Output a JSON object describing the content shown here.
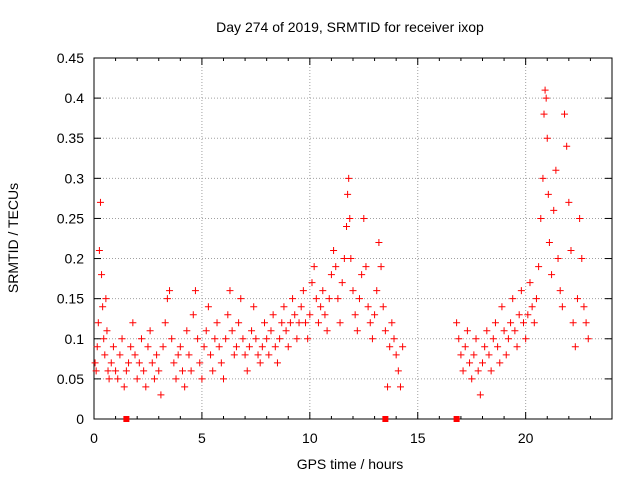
{
  "chart_data": {
    "type": "scatter",
    "title": "Day 274 of 2019, SRMTID for receiver ixop",
    "xlabel": "GPS time / hours",
    "ylabel": "SRMTID / TECUs",
    "xlim": [
      0,
      24
    ],
    "ylim": [
      0,
      0.45
    ],
    "x_ticks": [
      0,
      5,
      10,
      15,
      20
    ],
    "y_ticks": [
      0,
      0.05,
      0.1,
      0.15,
      0.2,
      0.25,
      0.3,
      0.35,
      0.4,
      0.45
    ],
    "x_tick_labels": [
      "0",
      "5",
      "10",
      "15",
      "20"
    ],
    "y_tick_labels": [
      "0",
      "0.05",
      "0.1",
      "0.15",
      "0.2",
      "0.25",
      "0.3",
      "0.35",
      "0.4",
      "0.45"
    ],
    "grid": true,
    "marker": "+",
    "series": [
      {
        "name": "SRMTID",
        "color": "#ff0000",
        "points": [
          [
            0.05,
            0.07
          ],
          [
            0.1,
            0.06
          ],
          [
            0.15,
            0.09
          ],
          [
            0.2,
            0.12
          ],
          [
            0.25,
            0.21
          ],
          [
            0.3,
            0.27
          ],
          [
            0.35,
            0.18
          ],
          [
            0.4,
            0.14
          ],
          [
            0.45,
            0.1
          ],
          [
            0.5,
            0.08
          ],
          [
            0.55,
            0.15
          ],
          [
            0.6,
            0.11
          ],
          [
            0.65,
            0.06
          ],
          [
            0.7,
            0.05
          ],
          [
            0.8,
            0.07
          ],
          [
            0.9,
            0.09
          ],
          [
            1.0,
            0.06
          ],
          [
            1.1,
            0.05
          ],
          [
            1.2,
            0.08
          ],
          [
            1.3,
            0.1
          ],
          [
            1.4,
            0.04
          ],
          [
            1.5,
            0.06
          ],
          [
            1.6,
            0.07
          ],
          [
            1.7,
            0.09
          ],
          [
            1.8,
            0.12
          ],
          [
            1.9,
            0.08
          ],
          [
            2.0,
            0.05
          ],
          [
            2.1,
            0.07
          ],
          [
            2.2,
            0.1
          ],
          [
            2.3,
            0.06
          ],
          [
            2.4,
            0.04
          ],
          [
            2.5,
            0.09
          ],
          [
            2.6,
            0.11
          ],
          [
            2.7,
            0.07
          ],
          [
            2.8,
            0.05
          ],
          [
            2.9,
            0.08
          ],
          [
            3.0,
            0.06
          ],
          [
            3.1,
            0.03
          ],
          [
            3.2,
            0.09
          ],
          [
            3.3,
            0.12
          ],
          [
            3.4,
            0.15
          ],
          [
            3.5,
            0.16
          ],
          [
            3.6,
            0.1
          ],
          [
            3.7,
            0.07
          ],
          [
            3.8,
            0.05
          ],
          [
            3.9,
            0.08
          ],
          [
            4.0,
            0.09
          ],
          [
            4.1,
            0.06
          ],
          [
            4.2,
            0.04
          ],
          [
            4.3,
            0.11
          ],
          [
            4.4,
            0.08
          ],
          [
            4.5,
            0.06
          ],
          [
            4.6,
            0.13
          ],
          [
            4.7,
            0.16
          ],
          [
            4.8,
            0.1
          ],
          [
            4.9,
            0.07
          ],
          [
            5.0,
            0.05
          ],
          [
            5.1,
            0.09
          ],
          [
            5.2,
            0.11
          ],
          [
            5.3,
            0.14
          ],
          [
            5.4,
            0.08
          ],
          [
            5.5,
            0.06
          ],
          [
            5.6,
            0.1
          ],
          [
            5.7,
            0.12
          ],
          [
            5.8,
            0.09
          ],
          [
            5.9,
            0.07
          ],
          [
            6.0,
            0.05
          ],
          [
            6.1,
            0.1
          ],
          [
            6.2,
            0.13
          ],
          [
            6.3,
            0.16
          ],
          [
            6.4,
            0.11
          ],
          [
            6.5,
            0.08
          ],
          [
            6.6,
            0.09
          ],
          [
            6.7,
            0.12
          ],
          [
            6.8,
            0.15
          ],
          [
            6.9,
            0.1
          ],
          [
            7.0,
            0.08
          ],
          [
            7.1,
            0.06
          ],
          [
            7.2,
            0.09
          ],
          [
            7.3,
            0.11
          ],
          [
            7.4,
            0.14
          ],
          [
            7.5,
            0.1
          ],
          [
            7.6,
            0.08
          ],
          [
            7.7,
            0.07
          ],
          [
            7.8,
            0.09
          ],
          [
            7.9,
            0.12
          ],
          [
            8.0,
            0.1
          ],
          [
            8.1,
            0.08
          ],
          [
            8.2,
            0.11
          ],
          [
            8.3,
            0.13
          ],
          [
            8.4,
            0.09
          ],
          [
            8.5,
            0.07
          ],
          [
            8.6,
            0.1
          ],
          [
            8.7,
            0.12
          ],
          [
            8.8,
            0.14
          ],
          [
            8.9,
            0.11
          ],
          [
            9.0,
            0.09
          ],
          [
            9.1,
            0.12
          ],
          [
            9.2,
            0.15
          ],
          [
            9.3,
            0.13
          ],
          [
            9.4,
            0.1
          ],
          [
            9.5,
            0.12
          ],
          [
            9.6,
            0.14
          ],
          [
            9.7,
            0.16
          ],
          [
            9.8,
            0.12
          ],
          [
            9.9,
            0.1
          ],
          [
            10.0,
            0.13
          ],
          [
            10.1,
            0.17
          ],
          [
            10.2,
            0.19
          ],
          [
            10.3,
            0.15
          ],
          [
            10.4,
            0.12
          ],
          [
            10.5,
            0.14
          ],
          [
            10.6,
            0.16
          ],
          [
            10.7,
            0.13
          ],
          [
            10.8,
            0.11
          ],
          [
            10.9,
            0.15
          ],
          [
            11.0,
            0.18
          ],
          [
            11.1,
            0.21
          ],
          [
            11.2,
            0.19
          ],
          [
            11.3,
            0.15
          ],
          [
            11.4,
            0.12
          ],
          [
            11.5,
            0.17
          ],
          [
            11.6,
            0.2
          ],
          [
            11.7,
            0.24
          ],
          [
            11.75,
            0.28
          ],
          [
            11.8,
            0.3
          ],
          [
            11.85,
            0.25
          ],
          [
            11.9,
            0.2
          ],
          [
            12.0,
            0.16
          ],
          [
            12.1,
            0.13
          ],
          [
            12.2,
            0.11
          ],
          [
            12.3,
            0.15
          ],
          [
            12.4,
            0.18
          ],
          [
            12.5,
            0.25
          ],
          [
            12.6,
            0.19
          ],
          [
            12.7,
            0.14
          ],
          [
            12.8,
            0.12
          ],
          [
            12.9,
            0.1
          ],
          [
            13.0,
            0.13
          ],
          [
            13.1,
            0.16
          ],
          [
            13.2,
            0.22
          ],
          [
            13.3,
            0.19
          ],
          [
            13.4,
            0.14
          ],
          [
            13.5,
            0.11
          ],
          [
            13.6,
            0.04
          ],
          [
            13.7,
            0.09
          ],
          [
            13.8,
            0.12
          ],
          [
            13.9,
            0.1
          ],
          [
            14.0,
            0.08
          ],
          [
            14.1,
            0.06
          ],
          [
            14.2,
            0.04
          ],
          [
            14.3,
            0.09
          ],
          [
            16.8,
            0.12
          ],
          [
            16.9,
            0.1
          ],
          [
            17.0,
            0.08
          ],
          [
            17.1,
            0.06
          ],
          [
            17.2,
            0.09
          ],
          [
            17.3,
            0.11
          ],
          [
            17.4,
            0.07
          ],
          [
            17.5,
            0.05
          ],
          [
            17.6,
            0.08
          ],
          [
            17.7,
            0.1
          ],
          [
            17.8,
            0.06
          ],
          [
            17.9,
            0.03
          ],
          [
            18.0,
            0.07
          ],
          [
            18.1,
            0.09
          ],
          [
            18.2,
            0.11
          ],
          [
            18.3,
            0.08
          ],
          [
            18.4,
            0.06
          ],
          [
            18.5,
            0.1
          ],
          [
            18.6,
            0.12
          ],
          [
            18.7,
            0.09
          ],
          [
            18.8,
            0.07
          ],
          [
            18.9,
            0.14
          ],
          [
            19.0,
            0.11
          ],
          [
            19.1,
            0.08
          ],
          [
            19.2,
            0.1
          ],
          [
            19.3,
            0.12
          ],
          [
            19.4,
            0.15
          ],
          [
            19.5,
            0.11
          ],
          [
            19.6,
            0.09
          ],
          [
            19.7,
            0.13
          ],
          [
            19.8,
            0.16
          ],
          [
            19.9,
            0.12
          ],
          [
            20.0,
            0.1
          ],
          [
            20.1,
            0.13
          ],
          [
            20.2,
            0.17
          ],
          [
            20.3,
            0.14
          ],
          [
            20.4,
            0.12
          ],
          [
            20.5,
            0.15
          ],
          [
            20.6,
            0.19
          ],
          [
            20.7,
            0.25
          ],
          [
            20.8,
            0.3
          ],
          [
            20.85,
            0.38
          ],
          [
            20.9,
            0.41
          ],
          [
            20.95,
            0.4
          ],
          [
            21.0,
            0.35
          ],
          [
            21.05,
            0.28
          ],
          [
            21.1,
            0.22
          ],
          [
            21.2,
            0.18
          ],
          [
            21.3,
            0.26
          ],
          [
            21.4,
            0.31
          ],
          [
            21.5,
            0.2
          ],
          [
            21.6,
            0.16
          ],
          [
            21.7,
            0.14
          ],
          [
            21.8,
            0.38
          ],
          [
            21.9,
            0.34
          ],
          [
            22.0,
            0.27
          ],
          [
            22.1,
            0.21
          ],
          [
            22.2,
            0.12
          ],
          [
            22.3,
            0.09
          ],
          [
            22.4,
            0.15
          ],
          [
            22.5,
            0.25
          ],
          [
            22.6,
            0.2
          ],
          [
            22.7,
            0.14
          ],
          [
            22.8,
            0.12
          ],
          [
            22.9,
            0.1
          ]
        ]
      }
    ],
    "axis_markers": {
      "color": "#ff0000",
      "x": [
        1.5,
        13.5,
        16.8
      ],
      "y": 0
    }
  }
}
